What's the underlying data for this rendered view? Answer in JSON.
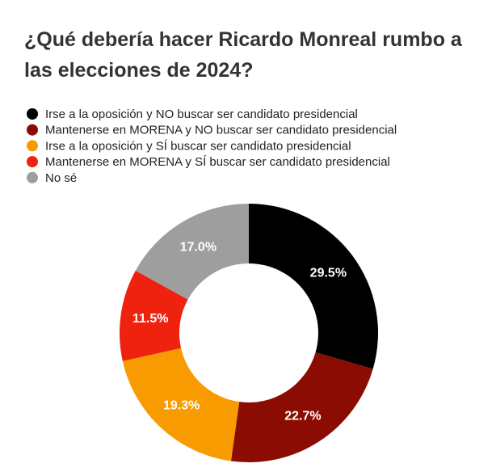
{
  "chart_data": {
    "type": "donut",
    "title": "¿Qué debería hacer Ricardo Monreal rumbo a las elecciones de 2024?",
    "categories": [
      "Irse a la oposición y NO buscar ser candidato presidencial",
      "Mantenerse en MORENA y NO buscar ser candidato presidencial",
      "Irse a la oposición y SÍ buscar ser candidato presidencial",
      "Mantenerse en MORENA y SÍ buscar ser candidato presidencial",
      "No sé"
    ],
    "values": [
      29.5,
      22.7,
      19.3,
      11.5,
      17.0
    ],
    "value_labels": [
      "29.5%",
      "22.7%",
      "19.3%",
      "11.5%",
      "17.0%"
    ],
    "colors": [
      "#000000",
      "#8b0c02",
      "#f89b00",
      "#ef220f",
      "#9e9e9e"
    ],
    "legend": "top-left"
  }
}
